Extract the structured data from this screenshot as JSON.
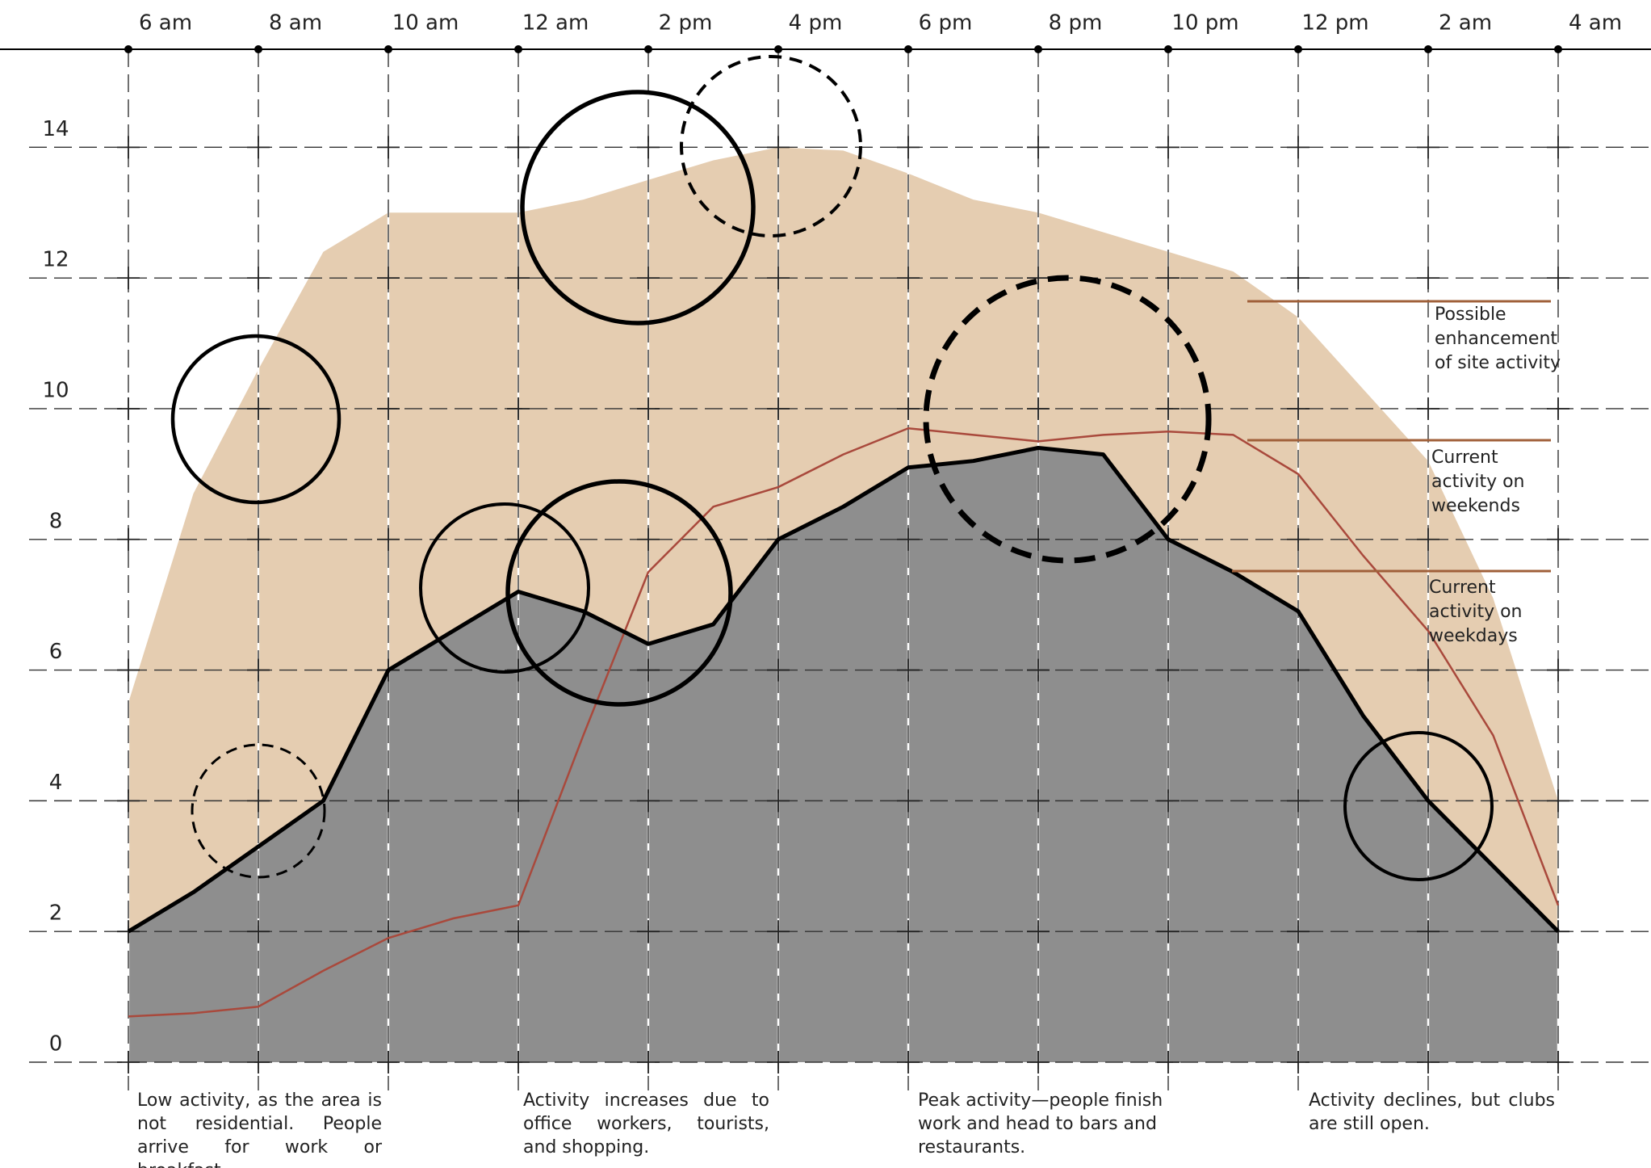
{
  "chart_data": {
    "type": "area",
    "categories": [
      "6 am",
      null,
      "8 am",
      null,
      "10 am",
      null,
      "12 am",
      null,
      "2 pm",
      null,
      "4 pm",
      null,
      "6 pm",
      null,
      "8 pm",
      null,
      "10 pm",
      null,
      "12 pm",
      null,
      "2 am",
      null,
      "4 am"
    ],
    "ylim": [
      0,
      15.5
    ],
    "yticks": [
      0,
      2,
      4,
      6,
      8,
      10,
      12,
      14
    ],
    "grid": true,
    "series": [
      {
        "name": "Possible enhancement of site activity",
        "style": "area",
        "color": "#e5cdb1",
        "values": [
          5.5,
          8.7,
          10.6,
          12.4,
          13.0,
          13.0,
          13.0,
          13.2,
          13.5,
          13.8,
          14.0,
          13.95,
          13.6,
          13.2,
          13.0,
          12.7,
          12.4,
          12.1,
          11.4,
          10.3,
          9.2,
          7.1,
          4.0
        ]
      },
      {
        "name": "Current activity on weekends",
        "style": "line",
        "color": "#a9493c",
        "values": [
          0.7,
          0.75,
          0.85,
          1.4,
          1.9,
          2.2,
          2.4,
          5.0,
          7.5,
          8.5,
          8.8,
          9.3,
          9.7,
          9.6,
          9.5,
          9.6,
          9.65,
          9.6,
          9.0,
          7.75,
          6.6,
          5.0,
          2.4
        ]
      },
      {
        "name": "Current activity on weekdays",
        "style": "area",
        "color": "#8e8e8e",
        "values": [
          2.0,
          2.6,
          3.3,
          4.0,
          6.0,
          6.6,
          7.2,
          6.9,
          6.4,
          6.7,
          8.0,
          8.5,
          9.1,
          9.2,
          9.4,
          9.3,
          8.0,
          7.5,
          6.9,
          5.3,
          4.0,
          3.0,
          2.0
        ]
      }
    ],
    "annotations": [
      "Low activity, as the area is not residential. People arrive for work or breakfast.",
      "Activity increases due to office workers, tourists, and shopping.",
      "Peak activity—people finish work and head to bars and restaurants.",
      "Activity declines, but clubs are still open."
    ]
  }
}
